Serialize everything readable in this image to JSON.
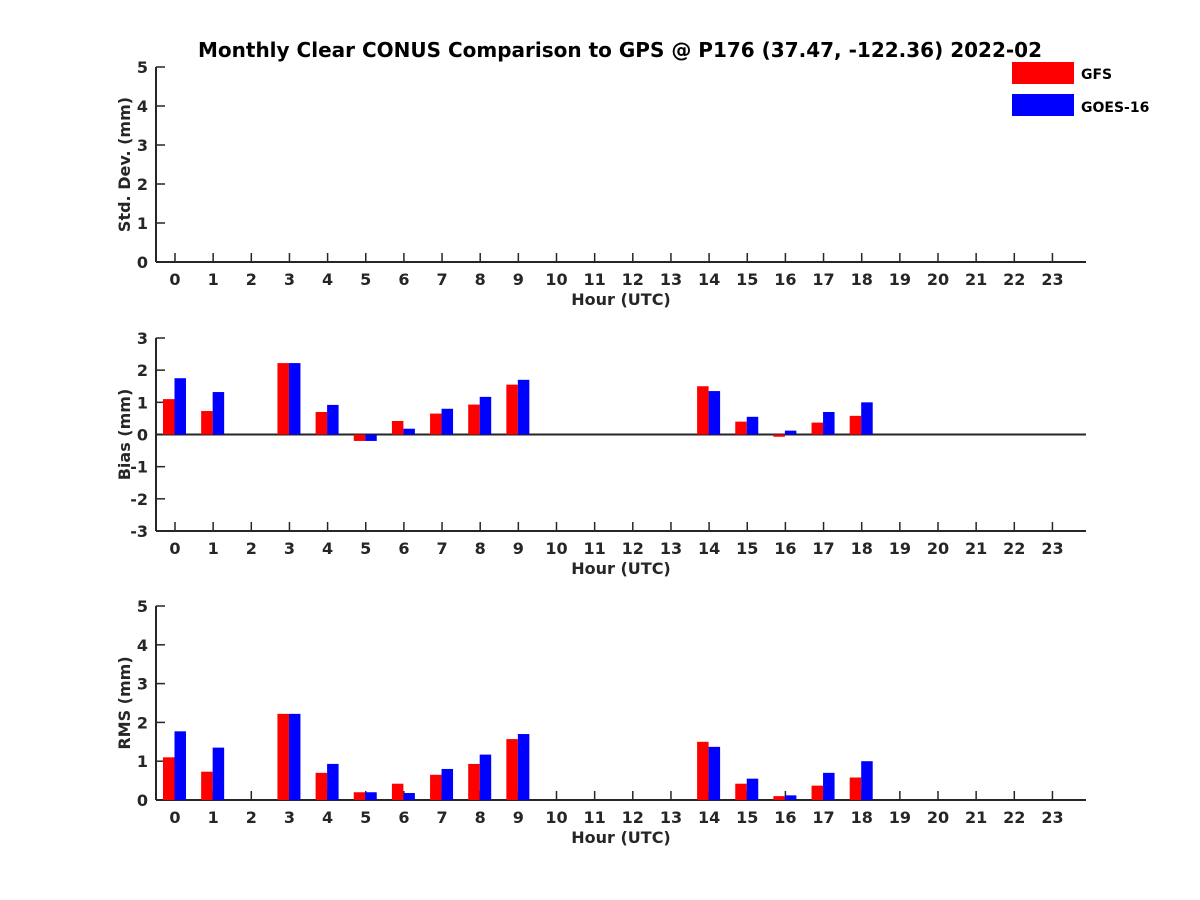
{
  "colors": {
    "GFS": "#ff0000",
    "GOES-16": "#0000ff"
  },
  "chart_data": {
    "title": "Monthly Clear CONUS Comparison to GPS @ P176 (37.47, -122.36) 2022-02",
    "legend": {
      "placement": "top-right",
      "entries": [
        "GFS",
        "GOES-16"
      ]
    },
    "series_names": [
      "GFS",
      "GOES-16"
    ],
    "panels": [
      {
        "type": "bar",
        "xlabel": "Hour (UTC)",
        "ylabel": "Std. Dev. (mm)",
        "ylim": [
          0,
          5
        ],
        "yticks": [
          0,
          1,
          2,
          3,
          4,
          5
        ],
        "categories": [
          "0",
          "1",
          "2",
          "3",
          "4",
          "5",
          "6",
          "7",
          "8",
          "9",
          "10",
          "11",
          "12",
          "13",
          "14",
          "15",
          "16",
          "17",
          "18",
          "19",
          "20",
          "21",
          "22",
          "23"
        ],
        "series": [
          {
            "name": "GFS",
            "values": [
              null,
              null,
              null,
              null,
              null,
              null,
              null,
              null,
              null,
              null,
              null,
              null,
              null,
              null,
              null,
              null,
              null,
              null,
              null,
              null,
              null,
              null,
              null,
              null
            ]
          },
          {
            "name": "GOES-16",
            "values": [
              null,
              null,
              null,
              null,
              null,
              null,
              null,
              null,
              null,
              null,
              null,
              null,
              null,
              null,
              null,
              null,
              null,
              null,
              null,
              null,
              null,
              null,
              null,
              null
            ]
          }
        ]
      },
      {
        "type": "bar",
        "xlabel": "Hour (UTC)",
        "ylabel": "Bias (mm)",
        "ylim": [
          -3,
          3
        ],
        "yticks": [
          -3,
          -2,
          -1,
          0,
          1,
          2,
          3
        ],
        "categories": [
          "0",
          "1",
          "2",
          "3",
          "4",
          "5",
          "6",
          "7",
          "8",
          "9",
          "10",
          "11",
          "12",
          "13",
          "14",
          "15",
          "16",
          "17",
          "18",
          "19",
          "20",
          "21",
          "22",
          "23"
        ],
        "series": [
          {
            "name": "GFS",
            "values": [
              1.1,
              0.73,
              null,
              2.22,
              0.7,
              -0.2,
              0.42,
              0.65,
              0.93,
              1.55,
              null,
              null,
              null,
              null,
              1.5,
              0.4,
              -0.07,
              0.37,
              0.58,
              null,
              null,
              null,
              null,
              null
            ]
          },
          {
            "name": "GOES-16",
            "values": [
              1.75,
              1.32,
              null,
              2.22,
              0.92,
              -0.2,
              0.18,
              0.8,
              1.17,
              1.7,
              null,
              null,
              null,
              null,
              1.35,
              0.55,
              0.12,
              0.7,
              1.0,
              null,
              null,
              null,
              null,
              null
            ]
          }
        ]
      },
      {
        "type": "bar",
        "xlabel": "Hour (UTC)",
        "ylabel": "RMS (mm)",
        "ylim": [
          0,
          5
        ],
        "yticks": [
          0,
          1,
          2,
          3,
          4,
          5
        ],
        "categories": [
          "0",
          "1",
          "2",
          "3",
          "4",
          "5",
          "6",
          "7",
          "8",
          "9",
          "10",
          "11",
          "12",
          "13",
          "14",
          "15",
          "16",
          "17",
          "18",
          "19",
          "20",
          "21",
          "22",
          "23"
        ],
        "series": [
          {
            "name": "GFS",
            "values": [
              1.1,
              0.73,
              null,
              2.22,
              0.7,
              0.2,
              0.42,
              0.65,
              0.93,
              1.57,
              null,
              null,
              null,
              null,
              1.5,
              0.42,
              0.1,
              0.37,
              0.58,
              null,
              null,
              null,
              null,
              null
            ]
          },
          {
            "name": "GOES-16",
            "values": [
              1.77,
              1.35,
              null,
              2.22,
              0.93,
              0.2,
              0.18,
              0.8,
              1.17,
              1.7,
              null,
              null,
              null,
              null,
              1.37,
              0.55,
              0.12,
              0.7,
              1.0,
              null,
              null,
              null,
              null,
              null
            ]
          }
        ]
      }
    ]
  }
}
